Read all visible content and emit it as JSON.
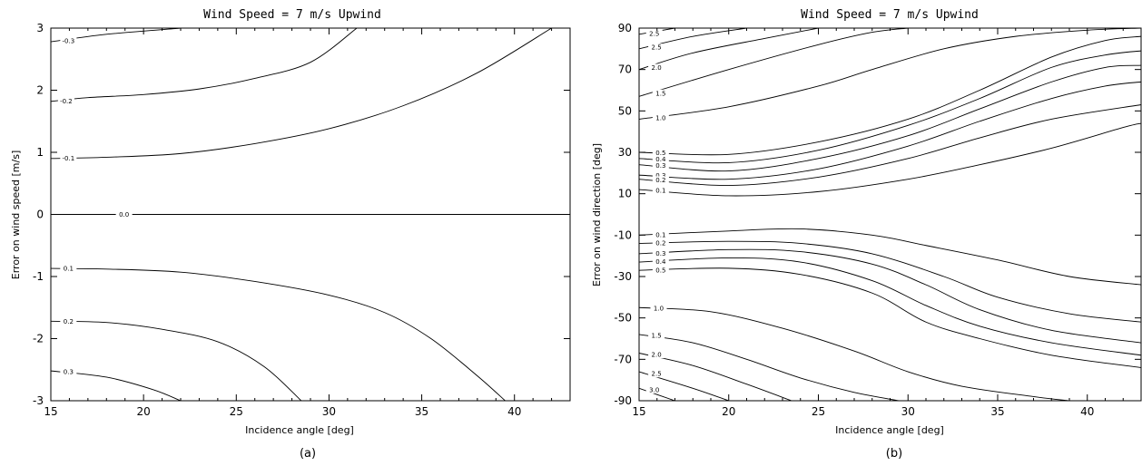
{
  "chart_data": [
    {
      "type": "line",
      "title": "Wind Speed = 7 m/s Upwind",
      "xlabel": "Incidence angle [deg]",
      "ylabel": "Error on wind speed [m/s]",
      "caption": "(a)",
      "xlim": [
        15,
        43
      ],
      "ylim": [
        -3,
        3
      ],
      "x_ticks": [
        15,
        20,
        25,
        30,
        35,
        40
      ],
      "y_ticks": [
        -3,
        -2,
        -1,
        0,
        1,
        2,
        3
      ],
      "grid": false,
      "series": [
        {
          "name": "-0.3",
          "points": [
            [
              15,
              2.78
            ],
            [
              18,
              2.9
            ],
            [
              22,
              3.0
            ]
          ]
        },
        {
          "name": "-0.2",
          "points": [
            [
              15,
              1.82
            ],
            [
              17,
              1.88
            ],
            [
              20,
              1.93
            ],
            [
              23,
              2.02
            ],
            [
              26,
              2.19
            ],
            [
              29,
              2.45
            ],
            [
              31.5,
              3.0
            ]
          ]
        },
        {
          "name": "-0.1",
          "points": [
            [
              15,
              0.9
            ],
            [
              18,
              0.92
            ],
            [
              22,
              0.98
            ],
            [
              26,
              1.14
            ],
            [
              30,
              1.38
            ],
            [
              34,
              1.75
            ],
            [
              38,
              2.28
            ],
            [
              42,
              3.0
            ]
          ]
        },
        {
          "name": "0.0",
          "points": [
            [
              15,
              0.0
            ],
            [
              43,
              0.0
            ]
          ]
        },
        {
          "name": "0.1",
          "points": [
            [
              15,
              -0.87
            ],
            [
              18,
              -0.88
            ],
            [
              22,
              -0.93
            ],
            [
              26,
              -1.08
            ],
            [
              30,
              -1.3
            ],
            [
              33,
              -1.58
            ],
            [
              35.5,
              -2.0
            ],
            [
              38,
              -2.6
            ],
            [
              39.5,
              -3.0
            ]
          ]
        },
        {
          "name": "0.2",
          "points": [
            [
              15,
              -1.72
            ],
            [
              18,
              -1.74
            ],
            [
              21,
              -1.85
            ],
            [
              24,
              -2.05
            ],
            [
              26.5,
              -2.45
            ],
            [
              28.5,
              -3.0
            ]
          ]
        },
        {
          "name": "0.3",
          "points": [
            [
              15,
              -2.52
            ],
            [
              18,
              -2.62
            ],
            [
              20.5,
              -2.82
            ],
            [
              22,
              -3.0
            ]
          ]
        }
      ]
    },
    {
      "type": "line",
      "title": "Wind Speed = 7 m/s Upwind",
      "xlabel": "Incidence angle [deg]",
      "ylabel": "Error on wind direction [deg]",
      "caption": "(b)",
      "xlim": [
        15,
        43
      ],
      "ylim": [
        -90,
        90
      ],
      "x_ticks": [
        15,
        20,
        25,
        30,
        35,
        40
      ],
      "y_ticks": [
        -90,
        -70,
        -50,
        -30,
        -10,
        10,
        30,
        50,
        70,
        90
      ],
      "grid": false,
      "series": [
        {
          "name": "2.5",
          "points": [
            [
              15,
              87
            ],
            [
              17,
              90
            ]
          ]
        },
        {
          "name": "2.5",
          "points": [
            [
              15,
              80
            ],
            [
              18,
              86
            ],
            [
              21,
              90
            ]
          ]
        },
        {
          "name": "2.0",
          "points": [
            [
              15,
              70
            ],
            [
              18,
              78
            ],
            [
              22,
              85
            ],
            [
              25,
              90
            ]
          ]
        },
        {
          "name": "1.5",
          "points": [
            [
              15,
              57
            ],
            [
              20,
              70
            ],
            [
              25,
              82
            ],
            [
              28,
              88
            ],
            [
              30,
              90
            ]
          ]
        },
        {
          "name": "1.0",
          "points": [
            [
              15,
              46
            ],
            [
              20,
              52
            ],
            [
              25,
              62
            ],
            [
              28,
              70
            ],
            [
              32,
              80
            ],
            [
              36,
              86
            ],
            [
              40,
              89
            ],
            [
              43,
              90
            ]
          ]
        },
        {
          "name": "0.5",
          "points": [
            [
              15,
              30
            ],
            [
              20,
              29
            ],
            [
              25,
              35
            ],
            [
              30,
              46
            ],
            [
              34,
              60
            ],
            [
              38,
              76
            ],
            [
              41,
              84
            ],
            [
              43,
              86
            ]
          ]
        },
        {
          "name": "0.4",
          "points": [
            [
              15,
              27
            ],
            [
              20,
              25
            ],
            [
              25,
              31
            ],
            [
              30,
              43
            ],
            [
              34,
              56
            ],
            [
              38,
              71
            ],
            [
              41,
              77
            ],
            [
              43,
              79
            ]
          ]
        },
        {
          "name": "0.3",
          "points": [
            [
              15,
              24
            ],
            [
              20,
              21
            ],
            [
              25,
              27
            ],
            [
              30,
              38
            ],
            [
              34,
              51
            ],
            [
              38,
              64
            ],
            [
              41,
              71
            ],
            [
              43,
              72
            ]
          ]
        },
        {
          "name": "0.3",
          "points": [
            [
              15,
              19
            ],
            [
              20,
              17
            ],
            [
              25,
              22
            ],
            [
              30,
              33
            ],
            [
              34,
              45
            ],
            [
              38,
              56
            ],
            [
              41,
              62
            ],
            [
              43,
              64
            ]
          ]
        },
        {
          "name": "0.2",
          "points": [
            [
              15,
              17
            ],
            [
              20,
              14
            ],
            [
              25,
              18
            ],
            [
              30,
              27
            ],
            [
              34,
              37
            ],
            [
              38,
              46
            ],
            [
              43,
              53
            ]
          ]
        },
        {
          "name": "0.1",
          "points": [
            [
              15,
              12
            ],
            [
              20,
              9
            ],
            [
              25,
              11
            ],
            [
              30,
              17
            ],
            [
              34,
              24
            ],
            [
              38,
              32
            ],
            [
              42,
              42
            ],
            [
              43,
              44
            ]
          ]
        },
        {
          "name": "0.1",
          "points": [
            [
              15,
              -10
            ],
            [
              20,
              -8
            ],
            [
              24,
              -7
            ],
            [
              28,
              -10
            ],
            [
              31,
              -15
            ],
            [
              35,
              -22
            ],
            [
              39,
              -30
            ],
            [
              43,
              -34
            ]
          ]
        },
        {
          "name": "0.2",
          "points": [
            [
              15,
              -14
            ],
            [
              20,
              -13
            ],
            [
              24,
              -14
            ],
            [
              28,
              -19
            ],
            [
              32,
              -30
            ],
            [
              35,
              -40
            ],
            [
              39,
              -48
            ],
            [
              43,
              -52
            ]
          ]
        },
        {
          "name": "0.3",
          "points": [
            [
              15,
              -19
            ],
            [
              20,
              -17
            ],
            [
              24,
              -18
            ],
            [
              28,
              -24
            ],
            [
              31,
              -34
            ],
            [
              34,
              -46
            ],
            [
              38,
              -56
            ],
            [
              43,
              -62
            ]
          ]
        },
        {
          "name": "0.4",
          "points": [
            [
              15,
              -23
            ],
            [
              20,
              -21
            ],
            [
              24,
              -23
            ],
            [
              28,
              -32
            ],
            [
              31,
              -44
            ],
            [
              34,
              -54
            ],
            [
              38,
              -62
            ],
            [
              43,
              -68
            ]
          ]
        },
        {
          "name": "0.5",
          "points": [
            [
              15,
              -27
            ],
            [
              20,
              -26
            ],
            [
              24,
              -29
            ],
            [
              28,
              -38
            ],
            [
              31,
              -52
            ],
            [
              34,
              -60
            ],
            [
              38,
              -68
            ],
            [
              43,
              -74
            ]
          ]
        },
        {
          "name": "1.0",
          "points": [
            [
              15,
              -45
            ],
            [
              19,
              -47
            ],
            [
              23,
              -55
            ],
            [
              27,
              -66
            ],
            [
              30,
              -76
            ],
            [
              33,
              -83
            ],
            [
              37,
              -88
            ],
            [
              39,
              -90
            ]
          ]
        },
        {
          "name": "1.5",
          "points": [
            [
              15,
              -58
            ],
            [
              18,
              -62
            ],
            [
              21,
              -70
            ],
            [
              24,
              -79
            ],
            [
              27,
              -86
            ],
            [
              29.5,
              -90
            ]
          ]
        },
        {
          "name": "2.0",
          "points": [
            [
              15,
              -67
            ],
            [
              18,
              -73
            ],
            [
              21,
              -82
            ],
            [
              23.5,
              -90
            ]
          ]
        },
        {
          "name": "2.5",
          "points": [
            [
              15,
              -76
            ],
            [
              18,
              -84
            ],
            [
              20,
              -90
            ]
          ]
        },
        {
          "name": "3.0",
          "points": [
            [
              15,
              -84
            ],
            [
              17,
              -90
            ]
          ]
        }
      ]
    }
  ]
}
